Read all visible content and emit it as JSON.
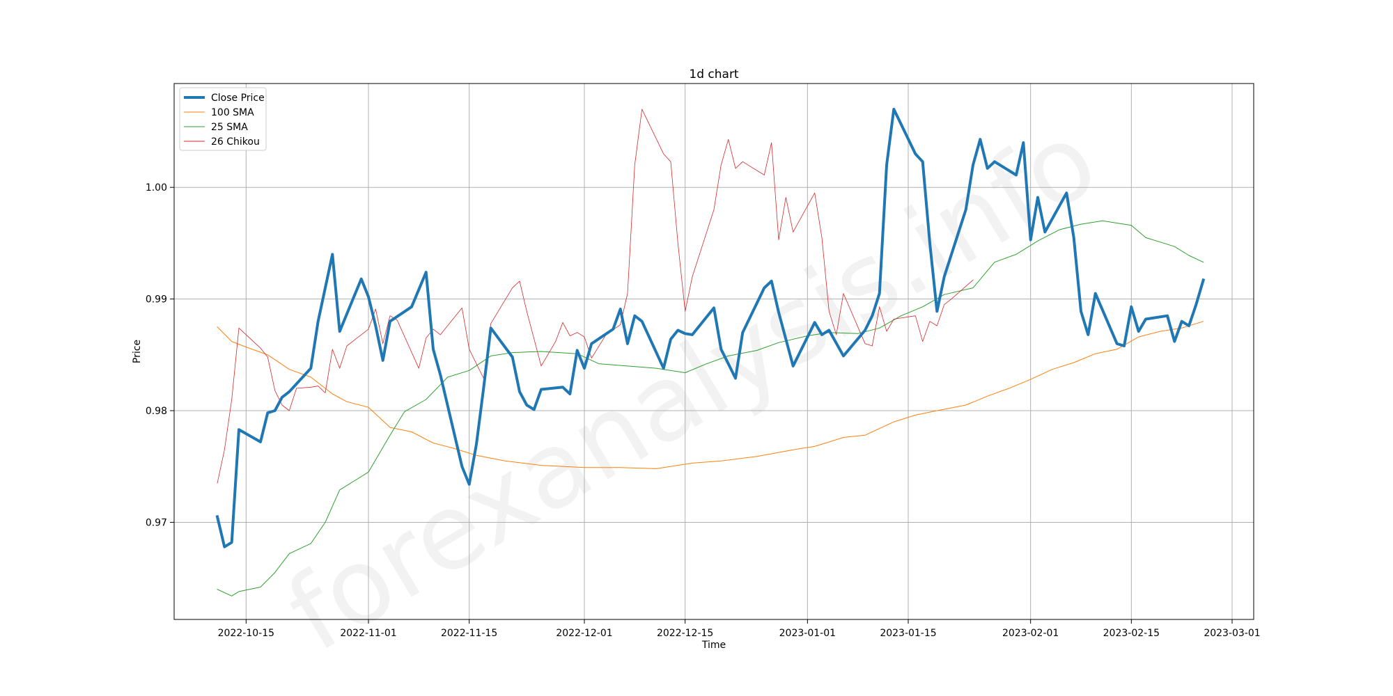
{
  "chart_data": {
    "type": "line",
    "title": "1d chart",
    "xlabel": "Time",
    "ylabel": "Price",
    "watermark": "forexanalysis.info",
    "grid": true,
    "legend_placement": "top-left",
    "xlim": [
      "2022-10-05",
      "2023-03-04"
    ],
    "ylim": [
      0.9613,
      1.0093
    ],
    "x_ticks": [
      "2022-10-15",
      "2022-11-01",
      "2022-11-15",
      "2022-12-01",
      "2022-12-15",
      "2023-01-01",
      "2023-01-15",
      "2023-02-01",
      "2023-02-15",
      "2023-03-01"
    ],
    "y_ticks": [
      0.97,
      0.98,
      0.99,
      1.0
    ],
    "y_tick_labels": [
      "0.97",
      "0.98",
      "0.99",
      "1.00"
    ],
    "series": [
      {
        "name": "Close Price",
        "color": "#1f77b4",
        "width": 4,
        "points": [
          [
            "2022-10-11",
            0.9705
          ],
          [
            "2022-10-12",
            0.9678
          ],
          [
            "2022-10-13",
            0.9682
          ],
          [
            "2022-10-14",
            0.9783
          ],
          [
            "2022-10-17",
            0.9772
          ],
          [
            "2022-10-18",
            0.9798
          ],
          [
            "2022-10-19",
            0.98
          ],
          [
            "2022-10-20",
            0.9812
          ],
          [
            "2022-10-21",
            0.9817
          ],
          [
            "2022-10-24",
            0.9838
          ],
          [
            "2022-10-25",
            0.988
          ],
          [
            "2022-10-27",
            0.994
          ],
          [
            "2022-10-28",
            0.9871
          ],
          [
            "2022-10-31",
            0.9918
          ],
          [
            "2022-11-01",
            0.9902
          ],
          [
            "2022-11-02",
            0.9876
          ],
          [
            "2022-11-03",
            0.9845
          ],
          [
            "2022-11-04",
            0.988
          ],
          [
            "2022-11-07",
            0.9893
          ],
          [
            "2022-11-09",
            0.9924
          ],
          [
            "2022-11-10",
            0.9855
          ],
          [
            "2022-11-11",
            0.9832
          ],
          [
            "2022-11-14",
            0.975
          ],
          [
            "2022-11-15",
            0.9734
          ],
          [
            "2022-11-16",
            0.977
          ],
          [
            "2022-11-17",
            0.982
          ],
          [
            "2022-11-18",
            0.9874
          ],
          [
            "2022-11-21",
            0.9848
          ],
          [
            "2022-11-22",
            0.9817
          ],
          [
            "2022-11-23",
            0.9805
          ],
          [
            "2022-11-24",
            0.9801
          ],
          [
            "2022-11-25",
            0.9819
          ],
          [
            "2022-11-28",
            0.9821
          ],
          [
            "2022-11-29",
            0.9815
          ],
          [
            "2022-11-30",
            0.9854
          ],
          [
            "2022-12-01",
            0.9838
          ],
          [
            "2022-12-02",
            0.986
          ],
          [
            "2022-12-05",
            0.9873
          ],
          [
            "2022-12-06",
            0.9891
          ],
          [
            "2022-12-07",
            0.986
          ],
          [
            "2022-12-08",
            0.9885
          ],
          [
            "2022-12-09",
            0.988
          ],
          [
            "2022-12-12",
            0.9838
          ],
          [
            "2022-12-13",
            0.9864
          ],
          [
            "2022-12-14",
            0.9872
          ],
          [
            "2022-12-15",
            0.9869
          ],
          [
            "2022-12-16",
            0.9868
          ],
          [
            "2022-12-19",
            0.9892
          ],
          [
            "2022-12-20",
            0.9855
          ],
          [
            "2022-12-21",
            0.9842
          ],
          [
            "2022-12-22",
            0.9829
          ],
          [
            "2022-12-23",
            0.987
          ],
          [
            "2022-12-26",
            0.991
          ],
          [
            "2022-12-27",
            0.9916
          ],
          [
            "2022-12-28",
            0.9888
          ],
          [
            "2022-12-30",
            0.984
          ],
          [
            "2023-01-02",
            0.9879
          ],
          [
            "2023-01-03",
            0.9868
          ],
          [
            "2023-01-04",
            0.9872
          ],
          [
            "2023-01-06",
            0.9849
          ],
          [
            "2023-01-09",
            0.9872
          ],
          [
            "2023-01-10",
            0.9885
          ],
          [
            "2023-01-11",
            0.9905
          ],
          [
            "2023-01-12",
            1.002
          ],
          [
            "2023-01-13",
            1.007
          ],
          [
            "2023-01-16",
            1.003
          ],
          [
            "2023-01-17",
            1.0023
          ],
          [
            "2023-01-18",
            0.995
          ],
          [
            "2023-01-19",
            0.9889
          ],
          [
            "2023-01-20",
            0.992
          ],
          [
            "2023-01-23",
            0.998
          ],
          [
            "2023-01-24",
            1.002
          ],
          [
            "2023-01-25",
            1.0043
          ],
          [
            "2023-01-26",
            1.0017
          ],
          [
            "2023-01-27",
            1.0023
          ],
          [
            "2023-01-30",
            1.0011
          ],
          [
            "2023-01-31",
            1.004
          ],
          [
            "2023-02-01",
            0.9953
          ],
          [
            "2023-02-02",
            0.9991
          ],
          [
            "2023-02-03",
            0.996
          ],
          [
            "2023-02-06",
            0.9995
          ],
          [
            "2023-02-07",
            0.9955
          ],
          [
            "2023-02-08",
            0.9889
          ],
          [
            "2023-02-09",
            0.9868
          ],
          [
            "2023-02-10",
            0.9905
          ],
          [
            "2023-02-13",
            0.986
          ],
          [
            "2023-02-14",
            0.9858
          ],
          [
            "2023-02-15",
            0.9893
          ],
          [
            "2023-02-16",
            0.9871
          ],
          [
            "2023-02-17",
            0.9882
          ],
          [
            "2023-02-20",
            0.9885
          ],
          [
            "2023-02-21",
            0.9862
          ],
          [
            "2023-02-22",
            0.988
          ],
          [
            "2023-02-23",
            0.9876
          ],
          [
            "2023-02-24",
            0.9895
          ],
          [
            "2023-02-25",
            0.9917
          ]
        ]
      },
      {
        "name": "100 SMA",
        "color": "#ff7f0e",
        "width": 1,
        "points": [
          [
            "2022-10-11",
            0.9875
          ],
          [
            "2022-10-13",
            0.9862
          ],
          [
            "2022-10-15",
            0.9857
          ],
          [
            "2022-10-18",
            0.985
          ],
          [
            "2022-10-21",
            0.9837
          ],
          [
            "2022-10-24",
            0.983
          ],
          [
            "2022-10-27",
            0.9815
          ],
          [
            "2022-10-29",
            0.9808
          ],
          [
            "2022-11-01",
            0.9803
          ],
          [
            "2022-11-04",
            0.9785
          ],
          [
            "2022-11-07",
            0.9781
          ],
          [
            "2022-11-10",
            0.9771
          ],
          [
            "2022-11-13",
            0.9766
          ],
          [
            "2022-11-16",
            0.976
          ],
          [
            "2022-11-20",
            0.9755
          ],
          [
            "2022-11-25",
            0.9751
          ],
          [
            "2022-12-01",
            0.9749
          ],
          [
            "2022-12-06",
            0.9749
          ],
          [
            "2022-12-11",
            0.9748
          ],
          [
            "2022-12-16",
            0.9753
          ],
          [
            "2022-12-20",
            0.9755
          ],
          [
            "2022-12-25",
            0.9759
          ],
          [
            "2022-12-30",
            0.9765
          ],
          [
            "2023-01-02",
            0.9768
          ],
          [
            "2023-01-06",
            0.9776
          ],
          [
            "2023-01-09",
            0.9778
          ],
          [
            "2023-01-13",
            0.979
          ],
          [
            "2023-01-16",
            0.9796
          ],
          [
            "2023-01-19",
            0.98
          ],
          [
            "2023-01-23",
            0.9805
          ],
          [
            "2023-01-26",
            0.9813
          ],
          [
            "2023-01-29",
            0.982
          ],
          [
            "2023-02-01",
            0.9828
          ],
          [
            "2023-02-04",
            0.9837
          ],
          [
            "2023-02-07",
            0.9843
          ],
          [
            "2023-02-10",
            0.9851
          ],
          [
            "2023-02-13",
            0.9855
          ],
          [
            "2023-02-16",
            0.9866
          ],
          [
            "2023-02-19",
            0.9871
          ],
          [
            "2023-02-22",
            0.9874
          ],
          [
            "2023-02-25",
            0.988
          ]
        ]
      },
      {
        "name": "25 SMA",
        "color": "#2ca02c",
        "width": 1,
        "points": [
          [
            "2022-10-11",
            0.964
          ],
          [
            "2022-10-13",
            0.9634
          ],
          [
            "2022-10-14",
            0.9638
          ],
          [
            "2022-10-17",
            0.9642
          ],
          [
            "2022-10-19",
            0.9655
          ],
          [
            "2022-10-21",
            0.9672
          ],
          [
            "2022-10-24",
            0.9681
          ],
          [
            "2022-10-26",
            0.97
          ],
          [
            "2022-10-28",
            0.9729
          ],
          [
            "2022-11-01",
            0.9745
          ],
          [
            "2022-11-04",
            0.9778
          ],
          [
            "2022-11-06",
            0.9799
          ],
          [
            "2022-11-09",
            0.981
          ],
          [
            "2022-11-12",
            0.983
          ],
          [
            "2022-11-15",
            0.9836
          ],
          [
            "2022-11-18",
            0.9849
          ],
          [
            "2022-11-21",
            0.9852
          ],
          [
            "2022-11-25",
            0.9853
          ],
          [
            "2022-11-30",
            0.9851
          ],
          [
            "2022-12-03",
            0.9842
          ],
          [
            "2022-12-07",
            0.984
          ],
          [
            "2022-12-11",
            0.9838
          ],
          [
            "2022-12-15",
            0.9834
          ],
          [
            "2022-12-18",
            0.9842
          ],
          [
            "2022-12-21",
            0.9849
          ],
          [
            "2022-12-25",
            0.9854
          ],
          [
            "2022-12-28",
            0.9861
          ],
          [
            "2023-01-01",
            0.9867
          ],
          [
            "2023-01-04",
            0.987
          ],
          [
            "2023-01-08",
            0.9869
          ],
          [
            "2023-01-11",
            0.9874
          ],
          [
            "2023-01-14",
            0.9885
          ],
          [
            "2023-01-17",
            0.9893
          ],
          [
            "2023-01-20",
            0.9904
          ],
          [
            "2023-01-24",
            0.991
          ],
          [
            "2023-01-27",
            0.9933
          ],
          [
            "2023-01-30",
            0.994
          ],
          [
            "2023-02-02",
            0.9952
          ],
          [
            "2023-02-05",
            0.9962
          ],
          [
            "2023-02-08",
            0.9967
          ],
          [
            "2023-02-11",
            0.997
          ],
          [
            "2023-02-15",
            0.9966
          ],
          [
            "2023-02-17",
            0.9955
          ],
          [
            "2023-02-21",
            0.9947
          ],
          [
            "2023-02-23",
            0.9939
          ],
          [
            "2023-02-25",
            0.9933
          ]
        ]
      },
      {
        "name": "26 Chikou",
        "color": "#d62728",
        "width": 0.8,
        "points": [
          [
            "2022-10-11",
            0.9735
          ],
          [
            "2022-10-12",
            0.9765
          ],
          [
            "2022-10-13",
            0.981
          ],
          [
            "2022-10-14",
            0.9874
          ],
          [
            "2022-10-17",
            0.9856
          ],
          [
            "2022-10-18",
            0.9848
          ],
          [
            "2022-10-19",
            0.9818
          ],
          [
            "2022-10-20",
            0.9805
          ],
          [
            "2022-10-21",
            0.98
          ],
          [
            "2022-10-22",
            0.982
          ],
          [
            "2022-10-24",
            0.9821
          ],
          [
            "2022-10-25",
            0.9822
          ],
          [
            "2022-10-26",
            0.9816
          ],
          [
            "2022-10-27",
            0.9855
          ],
          [
            "2022-10-28",
            0.9838
          ],
          [
            "2022-10-29",
            0.9858
          ],
          [
            "2022-11-01",
            0.9873
          ],
          [
            "2022-11-02",
            0.9891
          ],
          [
            "2022-11-03",
            0.986
          ],
          [
            "2022-11-04",
            0.9885
          ],
          [
            "2022-11-05",
            0.9881
          ],
          [
            "2022-11-08",
            0.9838
          ],
          [
            "2022-11-09",
            0.9865
          ],
          [
            "2022-11-10",
            0.9873
          ],
          [
            "2022-11-11",
            0.9868
          ],
          [
            "2022-11-14",
            0.9892
          ],
          [
            "2022-11-15",
            0.9855
          ],
          [
            "2022-11-17",
            0.9829
          ],
          [
            "2022-11-18",
            0.9878
          ],
          [
            "2022-11-21",
            0.991
          ],
          [
            "2022-11-22",
            0.9916
          ],
          [
            "2022-11-23",
            0.9889
          ],
          [
            "2022-11-25",
            0.984
          ],
          [
            "2022-11-27",
            0.9862
          ],
          [
            "2022-11-28",
            0.9879
          ],
          [
            "2022-11-29",
            0.9867
          ],
          [
            "2022-11-30",
            0.987
          ],
          [
            "2022-12-01",
            0.9866
          ],
          [
            "2022-12-02",
            0.9847
          ],
          [
            "2022-12-04",
            0.9868
          ],
          [
            "2022-12-06",
            0.9877
          ],
          [
            "2022-12-07",
            0.9905
          ],
          [
            "2022-12-08",
            1.002
          ],
          [
            "2022-12-09",
            1.007
          ],
          [
            "2022-12-12",
            1.003
          ],
          [
            "2022-12-13",
            1.0023
          ],
          [
            "2022-12-14",
            0.995
          ],
          [
            "2022-12-15",
            0.9889
          ],
          [
            "2022-12-16",
            0.992
          ],
          [
            "2022-12-19",
            0.998
          ],
          [
            "2022-12-20",
            1.002
          ],
          [
            "2022-12-21",
            1.0043
          ],
          [
            "2022-12-22",
            1.0017
          ],
          [
            "2022-12-23",
            1.0023
          ],
          [
            "2022-12-26",
            1.0011
          ],
          [
            "2022-12-27",
            1.004
          ],
          [
            "2022-12-28",
            0.9953
          ],
          [
            "2022-12-29",
            0.9991
          ],
          [
            "2022-12-30",
            0.996
          ],
          [
            "2023-01-02",
            0.9995
          ],
          [
            "2023-01-03",
            0.9955
          ],
          [
            "2023-01-04",
            0.9889
          ],
          [
            "2023-01-05",
            0.9868
          ],
          [
            "2023-01-06",
            0.9905
          ],
          [
            "2023-01-09",
            0.986
          ],
          [
            "2023-01-10",
            0.9858
          ],
          [
            "2023-01-11",
            0.9893
          ],
          [
            "2023-01-12",
            0.9871
          ],
          [
            "2023-01-13",
            0.9882
          ],
          [
            "2023-01-16",
            0.9885
          ],
          [
            "2023-01-17",
            0.9862
          ],
          [
            "2023-01-18",
            0.988
          ],
          [
            "2023-01-19",
            0.9876
          ],
          [
            "2023-01-20",
            0.9895
          ],
          [
            "2023-01-21",
            0.99
          ],
          [
            "2023-01-24",
            0.9917
          ]
        ]
      }
    ]
  }
}
